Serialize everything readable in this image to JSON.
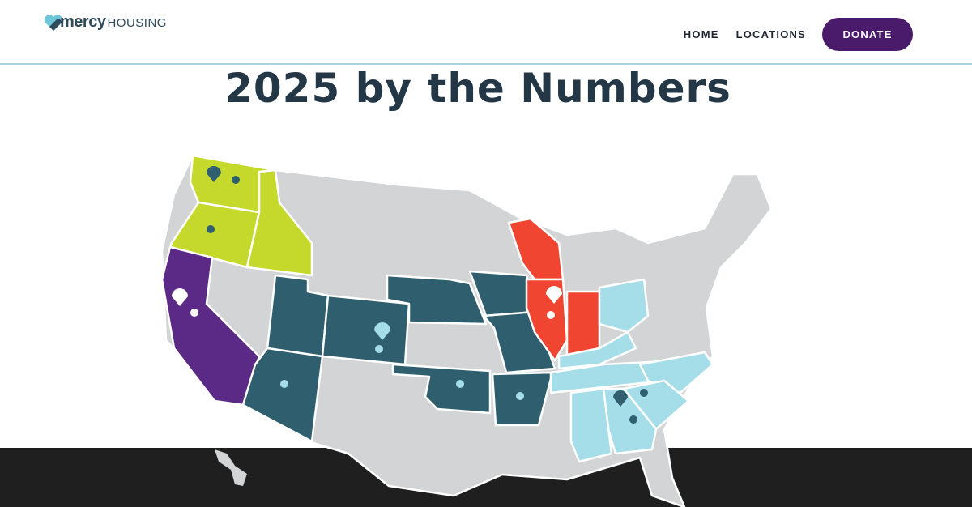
{
  "header": {
    "logo": {
      "primary": "mercy",
      "secondary": "HOUSING"
    },
    "nav": {
      "items": [
        "HOME",
        "LOCATIONS"
      ],
      "cta": "DONATE"
    }
  },
  "hero": {
    "title": "2025 by the Numbers"
  }
}
